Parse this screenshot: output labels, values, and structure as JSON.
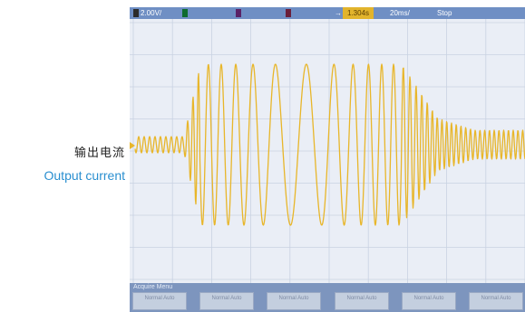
{
  "caption": {
    "zh": "输出电流",
    "en": "Output current"
  },
  "status_bar": {
    "ch1_scale": "2.00V/",
    "trigger_mark": "→",
    "time_pos": "1.304s",
    "time_div": "20ms/",
    "mode": "Stop"
  },
  "softkeys": {
    "title": "Acquire Menu",
    "labels": [
      "Normal Auto",
      "Normal Auto",
      "Normal Auto",
      "Normal Auto",
      "Normal Auto",
      "Normal Auto"
    ]
  },
  "colors": {
    "trace": "#e8b62a",
    "grid": "#c9d2e2",
    "status_bar": "#6f8fc4",
    "caption_en": "#2a8fd0"
  }
}
